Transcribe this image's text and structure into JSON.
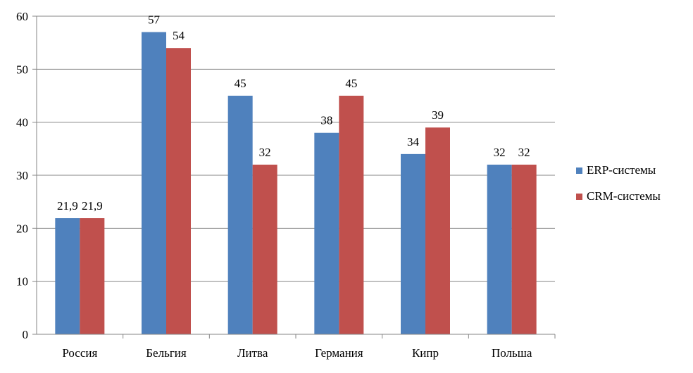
{
  "chart_data": {
    "type": "bar",
    "title": "",
    "xlabel": "",
    "ylabel": "",
    "categories": [
      "Россия",
      "Бельгия",
      "Литва",
      "Германия",
      "Кипр",
      "Польша"
    ],
    "series": [
      {
        "name": "ERP-системы",
        "values": [
          21.9,
          57,
          45,
          38,
          34,
          32
        ],
        "labels": [
          "21,9",
          "57",
          "45",
          "38",
          "34",
          "32"
        ],
        "color": "#4f81bd"
      },
      {
        "name": "CRM-системы",
        "values": [
          21.9,
          54,
          32,
          45,
          39,
          32
        ],
        "labels": [
          "21,9",
          "54",
          "32",
          "45",
          "39",
          "32"
        ],
        "color": "#c0504d"
      }
    ],
    "ylim": [
      0,
      60
    ],
    "yticks": [
      0,
      10,
      20,
      30,
      40,
      50,
      60
    ],
    "grid": true,
    "legend": "right",
    "gridline_color": "#868686"
  }
}
